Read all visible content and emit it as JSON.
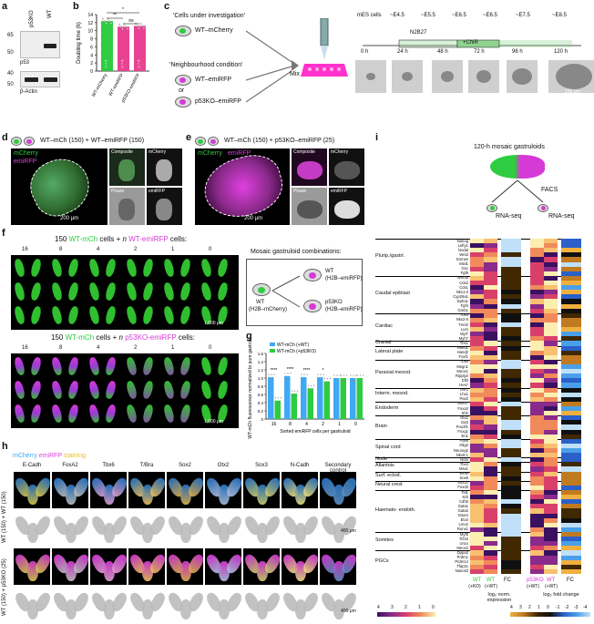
{
  "panel_a": {
    "label": "a",
    "lanes": [
      "p53KO",
      "WT"
    ],
    "kda_top": [
      "65",
      "50"
    ],
    "kda_bot": [
      "40",
      "50"
    ],
    "proteins": [
      "p53",
      "β-Actin"
    ]
  },
  "panel_b": {
    "label": "b",
    "ylabel": "Doubling time (h)",
    "bar_labels": [
      "WT-mCherry",
      "WT-emiRFP",
      "p53KO-emiRFP"
    ],
    "bar_values": [
      12.4,
      11.0,
      11.2
    ],
    "bar_inside": [
      "n = 6",
      "n = 6",
      "n = 6"
    ],
    "sig": [
      "*",
      "**",
      "ns"
    ],
    "ytick": [
      "0",
      "2",
      "4",
      "6",
      "8",
      "10",
      "12",
      "14"
    ],
    "ymax": 14
  },
  "panel_c": {
    "label": "c",
    "cells_title": "'Cells under investigation'",
    "cell1": "WT–mCherry",
    "neigh_title": "'Neighbourhood condition'",
    "cell2": "WT–emiRFP",
    "or": "or",
    "cell3": "p53KO–emiRFP",
    "mix": "Mix",
    "timeline_top": [
      "mES cells",
      "~E4.5",
      "~E5.5",
      "~E6.5",
      "~E6.5",
      "~E7.5",
      "~E8.5"
    ],
    "media": [
      "N2B27",
      "+ChiR"
    ],
    "times": [
      "0 h",
      "24 h",
      "48 h",
      "72 h",
      "96 h",
      "120 h"
    ],
    "scale": "100 μm"
  },
  "panel_d": {
    "label": "d",
    "title": "WT–mCh (150) + WT–emiRFP (150)",
    "ch": [
      "mCherry",
      "emiRFP"
    ],
    "sub": [
      "Composite",
      "mCherry",
      "Phase",
      "emiRFP"
    ],
    "scale": "200 μm"
  },
  "panel_e": {
    "label": "e",
    "title": "WT–mCh (150) + p53KO–emiRFP (25)",
    "ch": [
      "mCherry",
      "emiRFP"
    ],
    "sub": [
      "Composite",
      "mCherry",
      "Phase",
      "emiRFP"
    ],
    "scale": "200 μm"
  },
  "panel_f": {
    "label": "f",
    "title1_a": "150",
    "title1_b": "WT-mCh",
    "title1_c": "cells +",
    "title1_d": "n",
    "title1_e": "WT-emiRFP",
    "title1_f": "cells:",
    "title2_e": "p53KO-emiRFP",
    "ns": [
      "16",
      "8",
      "4",
      "2",
      "1",
      "0"
    ],
    "scale": "1,000 μm"
  },
  "panel_combo": {
    "title": "Mosaic gastruloid combinations:",
    "wt": "WT",
    "h2b_mch": "(H2B–mCherry)",
    "wt2": "WT",
    "h2b_emi": "(H2B–emiRFP)",
    "p53": "p53KO",
    "h2b_emi2": "(H2B–emiRFP)"
  },
  "panel_g": {
    "label": "g",
    "legend": [
      "WT-mCh (+WT)",
      "WT-mCh (+p53KO)"
    ],
    "ylabel": "WT-mCh fluorescence normalized to pure gastruloid",
    "xlabel": "Sorted emiRFP cells per gastruloid",
    "x": [
      "16",
      "8",
      "4",
      "2",
      "1",
      "0"
    ],
    "wt": [
      1.02,
      1.05,
      1.02,
      1.02,
      1.0,
      1.0
    ],
    "p53": [
      0.45,
      0.62,
      0.75,
      0.92,
      1.0,
      1.0
    ],
    "sig": [
      "****",
      "****",
      "****",
      "*",
      "",
      ""
    ],
    "yticks": [
      "0",
      "0.2",
      "0.4",
      "0.6",
      "0.8",
      "1.0",
      "1.2",
      "1.4",
      "1.6"
    ],
    "ymax": 1.6
  },
  "panel_h": {
    "label": "h",
    "title": [
      "mCherry",
      "emiRFP",
      "staining"
    ],
    "markers": [
      "E-Cadh",
      "FoxA2",
      "Tbx6",
      "T/Bra",
      "Sox2",
      "Otx2",
      "Sox3",
      "N-Cadh",
      "Secondary control"
    ],
    "row1": "WT (150) + WT (150)",
    "row2": "WT (150) + p53KO (25)",
    "scale": "400 μm"
  },
  "panel_i": {
    "label": "i",
    "title": "120-h mosaic gastruloids",
    "facs": "FACS",
    "rna": "RNA-seq",
    "categories": [
      "Plurip./gastrl.",
      "Caudal epiblast",
      "Cardiac",
      "Cranial",
      "Lateral plate",
      "Paraxial mesod.",
      "Interm. mesod.",
      "Endoderm",
      "Brain",
      "Spinal cord",
      "Node",
      "Allantois",
      "Surf. ectod.",
      "Neural crest",
      "Haemato- endoth.",
      "Somites",
      "PGCs"
    ],
    "genes": [
      "Nanog",
      "Lefty1",
      "Nodal",
      "Wnt3",
      "Eomes",
      "Mixl1",
      "Gsc",
      "Fgf8",
      "Wnt3a",
      "Cdx2",
      "Cdx1",
      "Nkx1-2",
      "Cyp26a1",
      "Epha1",
      "Fgf4",
      "Greb1",
      "Tbx5",
      "Nkx2-5",
      "Tnnt2",
      "Lum",
      "Myl7",
      "Myh7",
      "Tbx1",
      "Hand1",
      "Hand2",
      "Foxf1",
      "Tbx6",
      "Msgn1",
      "Meox1",
      "Ripply2",
      "Dll3",
      "Hes7",
      "Osr1",
      "Lhx1",
      "Pax2",
      "Sox17",
      "Foxa2",
      "Shh",
      "Otx2",
      "Six3",
      "Pou3f1",
      "Foxg1",
      "En1",
      "Pax6",
      "Olig2",
      "Neurog2",
      "Nkx6-1",
      "Noto",
      "Tbx4",
      "Msx1",
      "Wnt6",
      "Sox9",
      "Sox10",
      "Foxd3",
      "Tal1",
      "Kdr",
      "Cdh5",
      "Gata1",
      "Gata2",
      "Esam",
      "Etv2",
      "Lmo2",
      "Runx1",
      "Myf5",
      "Tcf15",
      "Uncx",
      "Meox2",
      "Dppa3",
      "Prdm1",
      "Prdm14",
      "Tfap2c",
      "Nanos3"
    ],
    "col_left": [
      "WT",
      "WT"
    ],
    "col_left_sub": [
      "(+KO)",
      "(+WT)"
    ],
    "fc": "FC",
    "col_right": [
      "p53KO",
      "WT"
    ],
    "col_right_sub": [
      "(+WT)",
      "(+WT)"
    ],
    "legend_left": "log₂ norm. expression",
    "legend_right": "log₂ fold change",
    "cb_left_ticks": [
      "4",
      "3",
      "2",
      "1",
      "0"
    ],
    "cb_right_ticks": [
      "4",
      "3",
      "2",
      "1",
      "0",
      "-1",
      "-2",
      "-3",
      "-4"
    ]
  }
}
